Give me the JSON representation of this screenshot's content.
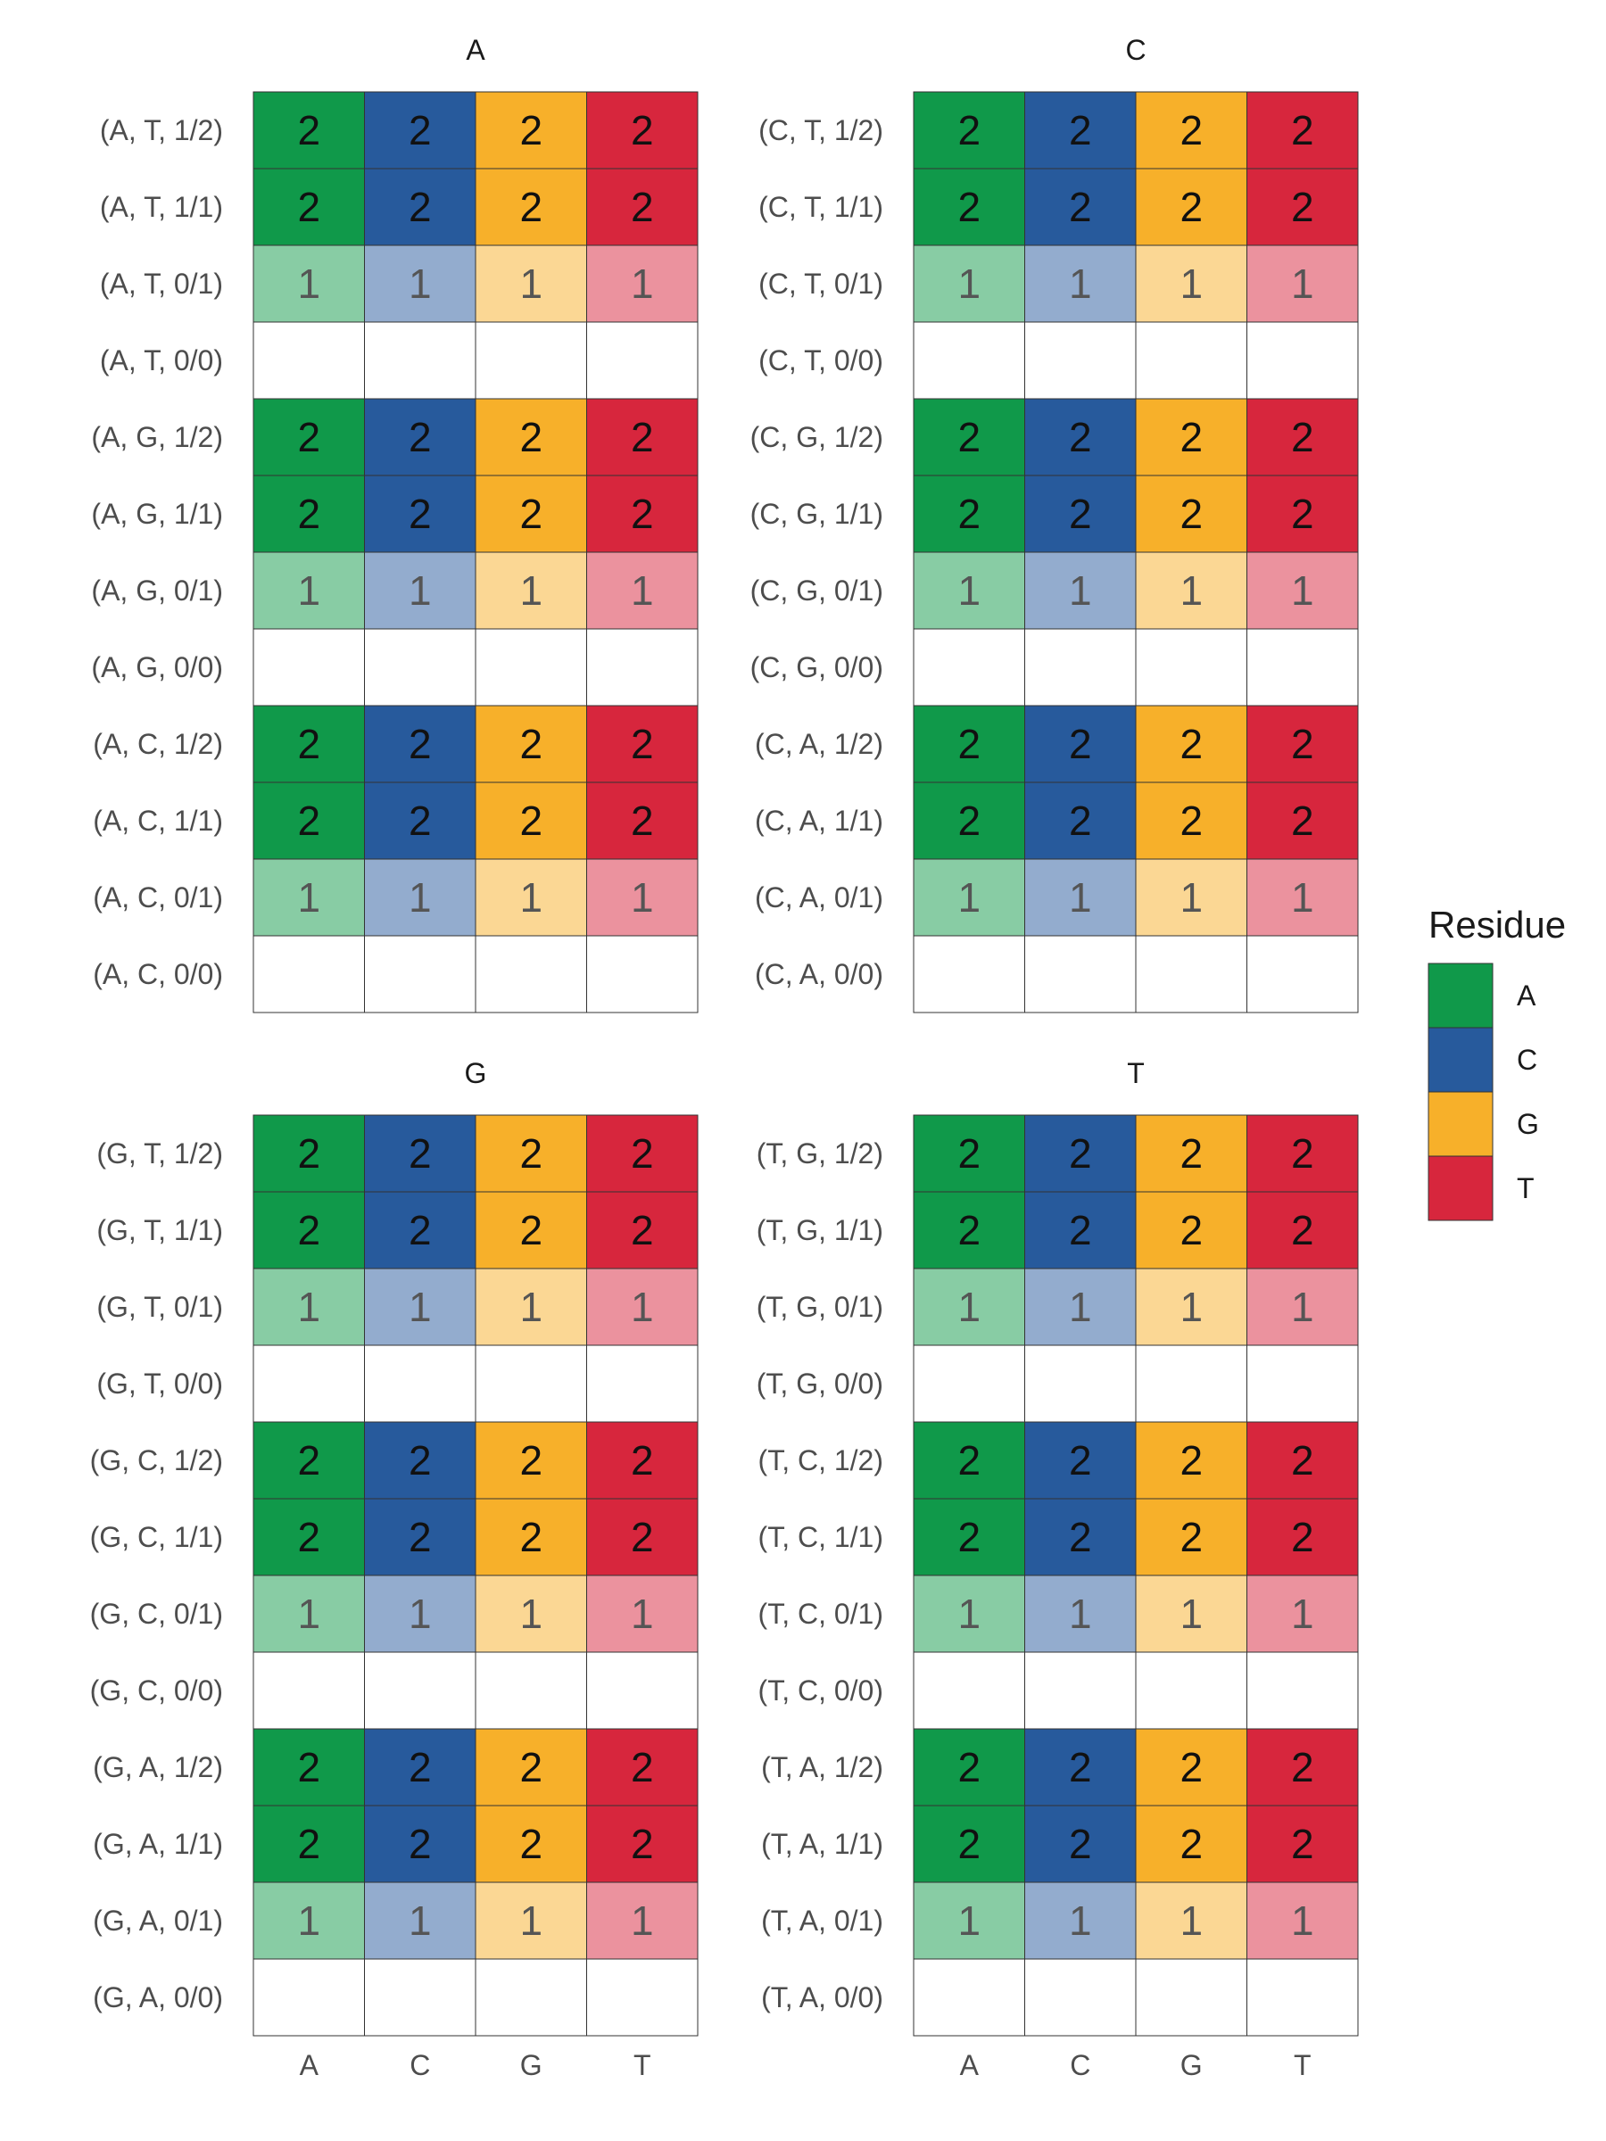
{
  "chart_data": {
    "type": "heatmap",
    "columns": [
      "A",
      "C",
      "G",
      "T"
    ],
    "legend": {
      "title": "Residue",
      "entries": [
        {
          "label": "A",
          "color": "#10994a"
        },
        {
          "label": "C",
          "color": "#275a9c"
        },
        {
          "label": "G",
          "color": "#f7b02a"
        },
        {
          "label": "T",
          "color": "#d7263d"
        }
      ]
    },
    "light_colors": {
      "A": "#88cca4",
      "C": "#93acce",
      "G": "#fbd794",
      "T": "#eb929e"
    },
    "facets": [
      {
        "title": "A",
        "rows": [
          {
            "label": "(A, T, 1/2)",
            "values": [
              2,
              2,
              2,
              2
            ]
          },
          {
            "label": "(A, T, 1/1)",
            "values": [
              2,
              2,
              2,
              2
            ]
          },
          {
            "label": "(A, T, 0/1)",
            "values": [
              1,
              1,
              1,
              1
            ]
          },
          {
            "label": "(A, T, 0/0)",
            "values": [
              null,
              null,
              null,
              null
            ]
          },
          {
            "label": "(A, G, 1/2)",
            "values": [
              2,
              2,
              2,
              2
            ]
          },
          {
            "label": "(A, G, 1/1)",
            "values": [
              2,
              2,
              2,
              2
            ]
          },
          {
            "label": "(A, G, 0/1)",
            "values": [
              1,
              1,
              1,
              1
            ]
          },
          {
            "label": "(A, G, 0/0)",
            "values": [
              null,
              null,
              null,
              null
            ]
          },
          {
            "label": "(A, C, 1/2)",
            "values": [
              2,
              2,
              2,
              2
            ]
          },
          {
            "label": "(A, C, 1/1)",
            "values": [
              2,
              2,
              2,
              2
            ]
          },
          {
            "label": "(A, C, 0/1)",
            "values": [
              1,
              1,
              1,
              1
            ]
          },
          {
            "label": "(A, C, 0/0)",
            "values": [
              null,
              null,
              null,
              null
            ]
          }
        ]
      },
      {
        "title": "C",
        "rows": [
          {
            "label": "(C, T, 1/2)",
            "values": [
              2,
              2,
              2,
              2
            ]
          },
          {
            "label": "(C, T, 1/1)",
            "values": [
              2,
              2,
              2,
              2
            ]
          },
          {
            "label": "(C, T, 0/1)",
            "values": [
              1,
              1,
              1,
              1
            ]
          },
          {
            "label": "(C, T, 0/0)",
            "values": [
              null,
              null,
              null,
              null
            ]
          },
          {
            "label": "(C, G, 1/2)",
            "values": [
              2,
              2,
              2,
              2
            ]
          },
          {
            "label": "(C, G, 1/1)",
            "values": [
              2,
              2,
              2,
              2
            ]
          },
          {
            "label": "(C, G, 0/1)",
            "values": [
              1,
              1,
              1,
              1
            ]
          },
          {
            "label": "(C, G, 0/0)",
            "values": [
              null,
              null,
              null,
              null
            ]
          },
          {
            "label": "(C, A, 1/2)",
            "values": [
              2,
              2,
              2,
              2
            ]
          },
          {
            "label": "(C, A, 1/1)",
            "values": [
              2,
              2,
              2,
              2
            ]
          },
          {
            "label": "(C, A, 0/1)",
            "values": [
              1,
              1,
              1,
              1
            ]
          },
          {
            "label": "(C, A, 0/0)",
            "values": [
              null,
              null,
              null,
              null
            ]
          }
        ]
      },
      {
        "title": "G",
        "rows": [
          {
            "label": "(G, T, 1/2)",
            "values": [
              2,
              2,
              2,
              2
            ]
          },
          {
            "label": "(G, T, 1/1)",
            "values": [
              2,
              2,
              2,
              2
            ]
          },
          {
            "label": "(G, T, 0/1)",
            "values": [
              1,
              1,
              1,
              1
            ]
          },
          {
            "label": "(G, T, 0/0)",
            "values": [
              null,
              null,
              null,
              null
            ]
          },
          {
            "label": "(G, C, 1/2)",
            "values": [
              2,
              2,
              2,
              2
            ]
          },
          {
            "label": "(G, C, 1/1)",
            "values": [
              2,
              2,
              2,
              2
            ]
          },
          {
            "label": "(G, C, 0/1)",
            "values": [
              1,
              1,
              1,
              1
            ]
          },
          {
            "label": "(G, C, 0/0)",
            "values": [
              null,
              null,
              null,
              null
            ]
          },
          {
            "label": "(G, A, 1/2)",
            "values": [
              2,
              2,
              2,
              2
            ]
          },
          {
            "label": "(G, A, 1/1)",
            "values": [
              2,
              2,
              2,
              2
            ]
          },
          {
            "label": "(G, A, 0/1)",
            "values": [
              1,
              1,
              1,
              1
            ]
          },
          {
            "label": "(G, A, 0/0)",
            "values": [
              null,
              null,
              null,
              null
            ]
          }
        ]
      },
      {
        "title": "T",
        "rows": [
          {
            "label": "(T, G, 1/2)",
            "values": [
              2,
              2,
              2,
              2
            ]
          },
          {
            "label": "(T, G, 1/1)",
            "values": [
              2,
              2,
              2,
              2
            ]
          },
          {
            "label": "(T, G, 0/1)",
            "values": [
              1,
              1,
              1,
              1
            ]
          },
          {
            "label": "(T, G, 0/0)",
            "values": [
              null,
              null,
              null,
              null
            ]
          },
          {
            "label": "(T, C, 1/2)",
            "values": [
              2,
              2,
              2,
              2
            ]
          },
          {
            "label": "(T, C, 1/1)",
            "values": [
              2,
              2,
              2,
              2
            ]
          },
          {
            "label": "(T, C, 0/1)",
            "values": [
              1,
              1,
              1,
              1
            ]
          },
          {
            "label": "(T, C, 0/0)",
            "values": [
              null,
              null,
              null,
              null
            ]
          },
          {
            "label": "(T, A, 1/2)",
            "values": [
              2,
              2,
              2,
              2
            ]
          },
          {
            "label": "(T, A, 1/1)",
            "values": [
              2,
              2,
              2,
              2
            ]
          },
          {
            "label": "(T, A, 0/1)",
            "values": [
              1,
              1,
              1,
              1
            ]
          },
          {
            "label": "(T, A, 0/0)",
            "values": [
              null,
              null,
              null,
              null
            ]
          }
        ]
      }
    ]
  }
}
